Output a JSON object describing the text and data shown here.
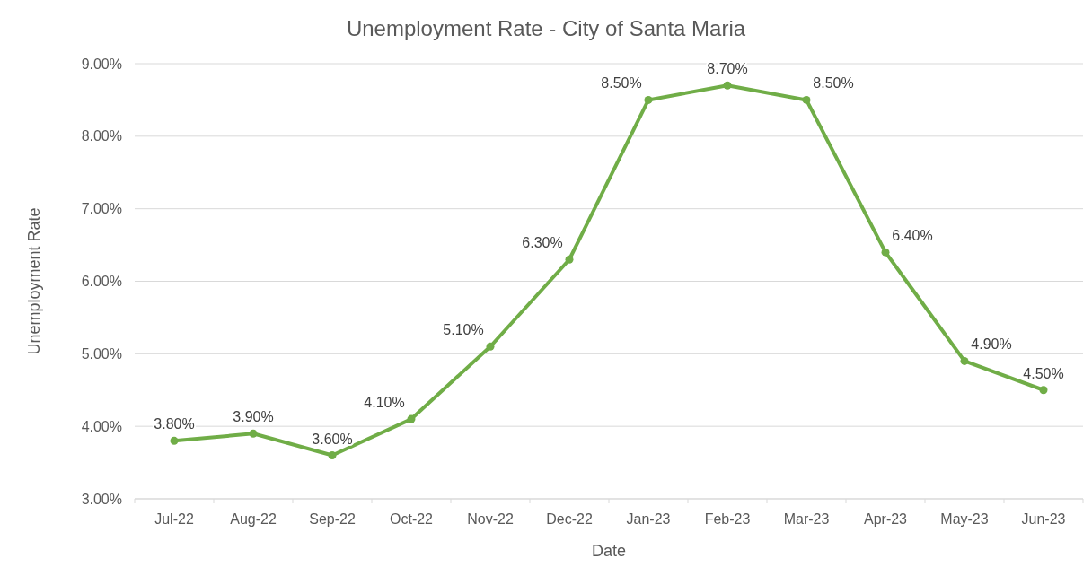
{
  "chart_data": {
    "type": "line",
    "title": "Unemployment Rate - City of Santa Maria",
    "xlabel": "Date",
    "ylabel": "Unemployment Rate",
    "categories": [
      "Jul-22",
      "Aug-22",
      "Sep-22",
      "Oct-22",
      "Nov-22",
      "Dec-22",
      "Jan-23",
      "Feb-23",
      "Mar-23",
      "Apr-23",
      "May-23",
      "Jun-23"
    ],
    "series": [
      {
        "color": "#70ad47",
        "values": [
          3.8,
          3.9,
          3.6,
          4.1,
          5.1,
          6.3,
          8.5,
          8.7,
          8.5,
          6.4,
          4.9,
          4.5
        ],
        "value_labels": [
          "3.80%",
          "3.90%",
          "3.60%",
          "4.10%",
          "5.10%",
          "6.30%",
          "8.50%",
          "8.70%",
          "8.50%",
          "6.40%",
          "4.90%",
          "4.50%"
        ]
      }
    ],
    "ylim": [
      3,
      9
    ],
    "yticks": [
      {
        "value": 3,
        "label": "3.00%"
      },
      {
        "value": 4,
        "label": "4.00%"
      },
      {
        "value": 5,
        "label": "5.00%"
      },
      {
        "value": 6,
        "label": "6.00%"
      },
      {
        "value": 7,
        "label": "7.00%"
      },
      {
        "value": 8,
        "label": "8.00%"
      },
      {
        "value": 9,
        "label": "9.00%"
      }
    ],
    "grid": "y",
    "marker": "circle",
    "line_style": "solid"
  }
}
